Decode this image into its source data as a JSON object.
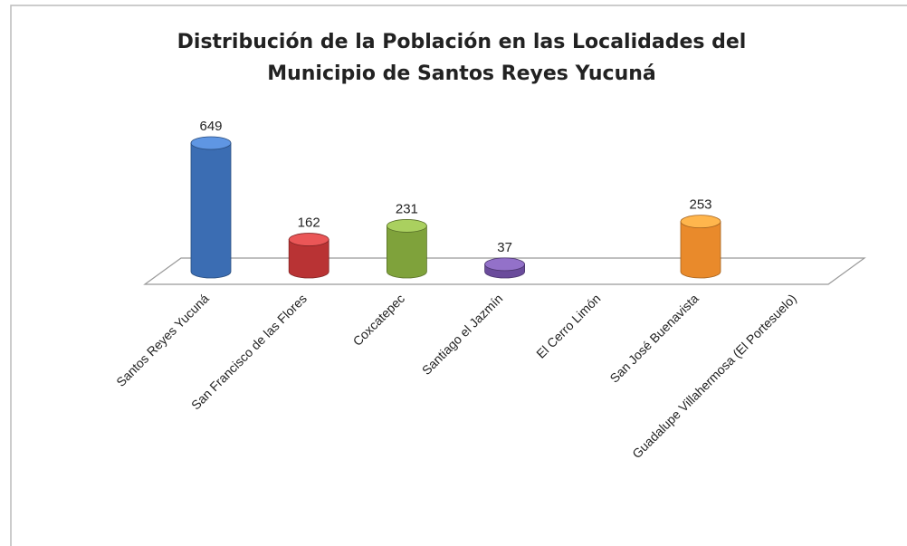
{
  "chart_data": {
    "type": "bar3d",
    "title": [
      "Distribución de la Población en las Localidades del",
      "Municipio de Santos Reyes Yucuná"
    ],
    "categories": [
      "Santos Reyes Yucuná",
      "San Francisco de las Flores",
      "Coxcatepec",
      "Santiago el Jazmín",
      "El Cerro Limón",
      "San José Buenavista",
      "Guadalupe Villahermosa (El Portesuelo)"
    ],
    "values": [
      649,
      162,
      231,
      37,
      null,
      253,
      null
    ],
    "colors": [
      "#3b6db3",
      "#b93334",
      "#7fa23b",
      "#6a4b9b",
      null,
      "#e98a2b",
      null
    ]
  }
}
